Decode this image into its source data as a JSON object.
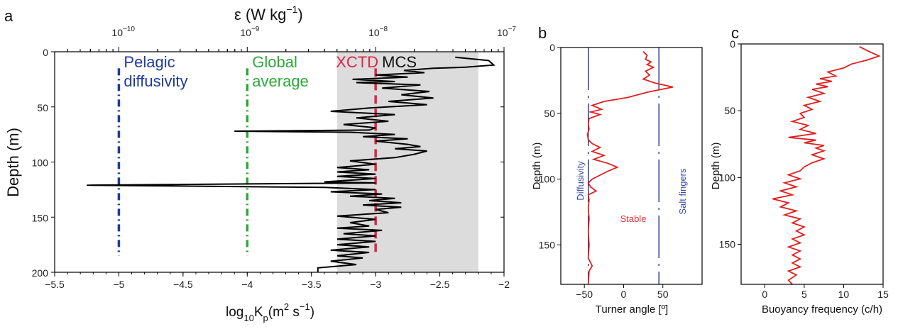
{
  "panel_letters": {
    "a": "a",
    "b": "b",
    "c": "c"
  },
  "chart_data": [
    {
      "type": "line",
      "panel": "a",
      "xlabel": "log10Kp(m2s−1)",
      "xlabel_parts": {
        "pre": "log",
        "sub1": "10",
        "k": "K",
        "sub2": "p",
        "open": "(m",
        "sup1": "2",
        "mid": " s",
        "sup2": "−1",
        "close": ")"
      },
      "top_xlabel": "ε (W kg−1)",
      "top_xlabel_parts": {
        "eps": "ε (W kg",
        "sup": "−1",
        "close": ")"
      },
      "ylabel": "Depth (m)",
      "xlim": [
        -5.5,
        -2
      ],
      "ylim": [
        200,
        0
      ],
      "xticks": [
        "−5.5",
        "−5",
        "−4.5",
        "−4",
        "−3.5",
        "−3",
        "−2.5",
        "−2"
      ],
      "xtick_values": [
        -5.5,
        -5,
        -4.5,
        -4,
        -3.5,
        -3,
        -2.5,
        -2
      ],
      "yticks": [
        "0",
        "50",
        "100",
        "150",
        "200"
      ],
      "ytick_values": [
        0,
        50,
        100,
        150,
        200
      ],
      "top_ticks": [
        {
          "value": -5,
          "base": "10",
          "exp": "−10"
        },
        {
          "value": -4,
          "base": "10",
          "exp": "−9"
        },
        {
          "value": -3,
          "base": "10",
          "exp": "−8"
        },
        {
          "value": -2,
          "base": "10",
          "exp": "−7"
        }
      ],
      "shaded_range": {
        "label": "MCS",
        "x": [
          -3.3,
          -2.2
        ],
        "color": "#dcdcdc",
        "label_color": "#9a9a9a"
      },
      "reference_lines": [
        {
          "label": [
            "Pelagic",
            "diffusivity"
          ],
          "x": -5,
          "y": [
            15,
            185
          ],
          "color": "#1f3b9b"
        },
        {
          "label": [
            "Global",
            "average"
          ],
          "x": -4,
          "y": [
            15,
            185
          ],
          "color": "#2ba839"
        },
        {
          "label": [
            "XCTD"
          ],
          "x": -3,
          "y": [
            15,
            185
          ],
          "color": "#e0254a"
        }
      ],
      "series": [
        {
          "color": "#000000",
          "points": [
            [
              -2.38,
              5
            ],
            [
              -2.12,
              8
            ],
            [
              -2.08,
              12
            ],
            [
              -2.3,
              14
            ],
            [
              -2.55,
              15
            ],
            [
              -2.78,
              17
            ],
            [
              -2.62,
              19
            ],
            [
              -3.0,
              21
            ],
            [
              -2.75,
              23
            ],
            [
              -3.18,
              25
            ],
            [
              -2.85,
              27
            ],
            [
              -3.15,
              28
            ],
            [
              -2.65,
              30
            ],
            [
              -2.95,
              33
            ],
            [
              -2.58,
              36
            ],
            [
              -2.8,
              39
            ],
            [
              -2.55,
              42
            ],
            [
              -2.9,
              45
            ],
            [
              -2.6,
              48
            ],
            [
              -3.05,
              51
            ],
            [
              -3.35,
              54
            ],
            [
              -2.85,
              57
            ],
            [
              -3.15,
              60
            ],
            [
              -2.9,
              63
            ],
            [
              -3.25,
              66
            ],
            [
              -3.0,
              69
            ],
            [
              -3.05,
              71
            ],
            [
              -4.1,
              72
            ],
            [
              -3.2,
              73
            ],
            [
              -2.85,
              75
            ],
            [
              -3.1,
              77
            ],
            [
              -2.75,
              79
            ],
            [
              -3.0,
              81
            ],
            [
              -2.75,
              84
            ],
            [
              -2.65,
              86
            ],
            [
              -2.85,
              88
            ],
            [
              -2.6,
              90
            ],
            [
              -2.7,
              93
            ],
            [
              -2.85,
              96
            ],
            [
              -3.2,
              99
            ],
            [
              -3.0,
              102
            ],
            [
              -3.3,
              105
            ],
            [
              -3.05,
              107
            ],
            [
              -3.3,
              109
            ],
            [
              -3.0,
              111
            ],
            [
              -3.3,
              113
            ],
            [
              -3.0,
              115
            ],
            [
              -3.4,
              118
            ],
            [
              -3.0,
              119
            ],
            [
              -5.25,
              121
            ],
            [
              -3.4,
              123
            ],
            [
              -3.0,
              125
            ],
            [
              -3.35,
              127
            ],
            [
              -2.95,
              129
            ],
            [
              -3.2,
              131
            ],
            [
              -2.85,
              133
            ],
            [
              -3.05,
              135
            ],
            [
              -2.8,
              137
            ],
            [
              -3.1,
              139
            ],
            [
              -2.8,
              141
            ],
            [
              -3.0,
              143
            ],
            [
              -2.9,
              146
            ],
            [
              -3.3,
              149
            ],
            [
              -3.0,
              152
            ],
            [
              -3.2,
              155
            ],
            [
              -3.05,
              158
            ],
            [
              -3.3,
              160
            ],
            [
              -2.95,
              162
            ],
            [
              -3.25,
              165
            ],
            [
              -3.0,
              167
            ],
            [
              -3.3,
              170
            ],
            [
              -3.0,
              172
            ],
            [
              -3.3,
              175
            ],
            [
              -3.05,
              177
            ],
            [
              -3.35,
              180
            ],
            [
              -3.05,
              182
            ],
            [
              -3.3,
              185
            ],
            [
              -3.1,
              187
            ],
            [
              -3.35,
              190
            ],
            [
              -3.15,
              193
            ],
            [
              -3.45,
              196
            ],
            [
              -3.45,
              200
            ]
          ]
        }
      ]
    },
    {
      "type": "line",
      "panel": "b",
      "xlabel": "Turner angle [º]",
      "ylabel": "Depth (m)",
      "xlim": [
        -80,
        100
      ],
      "ylim": [
        180,
        0
      ],
      "xticks": [
        "−50",
        "0",
        "50"
      ],
      "xtick_values": [
        -50,
        0,
        50
      ],
      "yticks": [
        "0",
        "50",
        "100",
        "150"
      ],
      "ytick_values": [
        0,
        50,
        100,
        150
      ],
      "annotations": [
        {
          "text": "Diffusivity",
          "color": "#3a4aa8"
        },
        {
          "text": "Stable",
          "color": "#e03030"
        },
        {
          "text": "Salt fingers",
          "color": "#3a4aa8"
        }
      ],
      "reference_lines": [
        {
          "x": -45,
          "color": "#1f2f8f"
        },
        {
          "x": 45,
          "color": "#1f2f8f"
        }
      ],
      "series": [
        {
          "color": "#e02020",
          "points": [
            [
              25,
              3
            ],
            [
              30,
              6
            ],
            [
              28,
              9
            ],
            [
              35,
              11
            ],
            [
              30,
              13
            ],
            [
              38,
              15
            ],
            [
              28,
              18
            ],
            [
              33,
              21
            ],
            [
              25,
              24
            ],
            [
              40,
              27
            ],
            [
              63,
              30
            ],
            [
              30,
              34
            ],
            [
              5,
              38
            ],
            [
              -25,
              41
            ],
            [
              -40,
              44
            ],
            [
              -28,
              47
            ],
            [
              -42,
              49
            ],
            [
              -30,
              51
            ],
            [
              -44,
              54
            ],
            [
              -45,
              58
            ],
            [
              -44,
              62
            ],
            [
              -46,
              66
            ],
            [
              -45,
              70
            ],
            [
              -40,
              73
            ],
            [
              -30,
              76
            ],
            [
              -40,
              79
            ],
            [
              -25,
              82
            ],
            [
              -38,
              85
            ],
            [
              -20,
              88
            ],
            [
              -8,
              91
            ],
            [
              -20,
              94
            ],
            [
              -30,
              97
            ],
            [
              -40,
              100
            ],
            [
              -45,
              103
            ],
            [
              -42,
              106
            ],
            [
              -35,
              109
            ],
            [
              -45,
              112
            ],
            [
              -44,
              116
            ],
            [
              -45,
              122
            ],
            [
              -44,
              130
            ],
            [
              -45,
              140
            ],
            [
              -44,
              150
            ],
            [
              -45,
              160
            ],
            [
              -40,
              166
            ],
            [
              -44,
              170
            ],
            [
              -45,
              180
            ]
          ]
        }
      ]
    },
    {
      "type": "line",
      "panel": "c",
      "xlabel": "Buoyancy frequency (c/h)",
      "ylabel": "Depth (m)",
      "xlim": [
        -3,
        15
      ],
      "ylim": [
        180,
        0
      ],
      "xticks": [
        "0",
        "5",
        "10",
        "15"
      ],
      "xtick_values": [
        0,
        5,
        10,
        15
      ],
      "yticks": [
        "0",
        "50",
        "100",
        "150"
      ],
      "ytick_values": [
        0,
        50,
        100,
        150
      ],
      "series": [
        {
          "color": "#e02020",
          "points": [
            [
              12,
              2
            ],
            [
              13,
              5
            ],
            [
              14.5,
              9
            ],
            [
              13,
              12
            ],
            [
              11,
              15
            ],
            [
              10,
              18
            ],
            [
              8,
              21
            ],
            [
              9,
              24
            ],
            [
              7,
              26
            ],
            [
              8.5,
              28
            ],
            [
              6.5,
              30
            ],
            [
              8,
              32
            ],
            [
              6,
              34
            ],
            [
              7.5,
              37
            ],
            [
              5.5,
              40
            ],
            [
              7,
              43
            ],
            [
              5,
              46
            ],
            [
              6,
              49
            ],
            [
              4.5,
              52
            ],
            [
              5,
              55
            ],
            [
              3.5,
              58
            ],
            [
              5.5,
              61
            ],
            [
              4.5,
              64
            ],
            [
              6.5,
              67
            ],
            [
              3,
              70
            ],
            [
              6.5,
              72
            ],
            [
              5,
              74
            ],
            [
              7.5,
              76
            ],
            [
              6.5,
              78
            ],
            [
              7.5,
              80
            ],
            [
              6,
              83
            ],
            [
              7.5,
              86
            ],
            [
              6,
              89
            ],
            [
              5,
              92
            ],
            [
              4.5,
              95
            ],
            [
              3,
              98
            ],
            [
              4.5,
              101
            ],
            [
              2.5,
              104
            ],
            [
              4,
              107
            ],
            [
              2,
              110
            ],
            [
              3.5,
              113
            ],
            [
              1,
              116
            ],
            [
              3,
              119
            ],
            [
              2,
              122
            ],
            [
              4,
              125
            ],
            [
              2.5,
              128
            ],
            [
              4.5,
              131
            ],
            [
              3.5,
              134
            ],
            [
              5,
              137
            ],
            [
              4,
              140
            ],
            [
              5,
              143
            ],
            [
              3.5,
              146
            ],
            [
              4.5,
              149
            ],
            [
              3,
              152
            ],
            [
              4.5,
              155
            ],
            [
              3.5,
              158
            ],
            [
              4.5,
              161
            ],
            [
              3.5,
              164
            ],
            [
              4.5,
              167
            ],
            [
              3,
              170
            ],
            [
              4,
              173
            ],
            [
              3,
              177
            ],
            [
              3.5,
              180
            ]
          ]
        }
      ]
    }
  ]
}
